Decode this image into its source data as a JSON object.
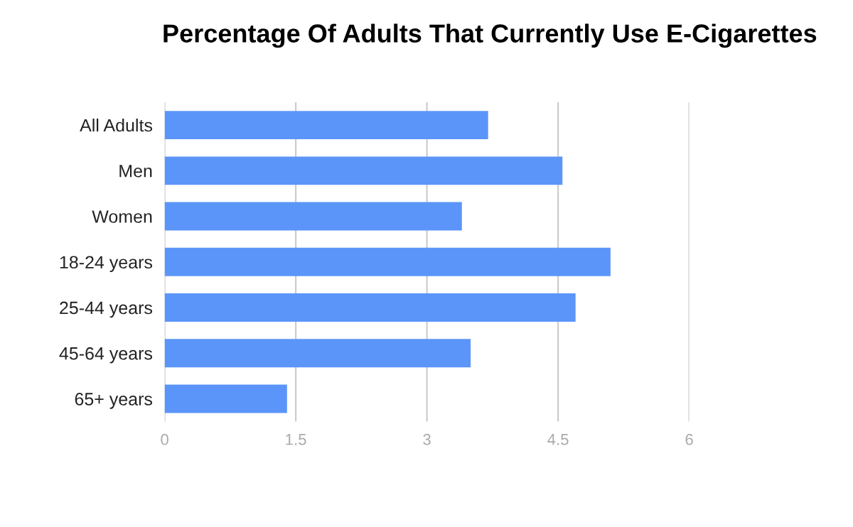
{
  "chart_data": {
    "type": "bar",
    "orientation": "horizontal",
    "title": "Percentage Of Adults That Currently Use E-Cigarettes",
    "categories": [
      "All Adults",
      "Men",
      "Women",
      "18-24 years",
      "25-44 years",
      "45-64 years",
      "65+ years"
    ],
    "values": [
      3.7,
      4.55,
      3.4,
      5.1,
      4.7,
      3.5,
      1.4
    ],
    "color": "#5b95f9",
    "xlim": [
      0,
      6
    ],
    "xticks": [
      0,
      1.5,
      3,
      4.5,
      6
    ],
    "grid": "x",
    "legend": false
  }
}
